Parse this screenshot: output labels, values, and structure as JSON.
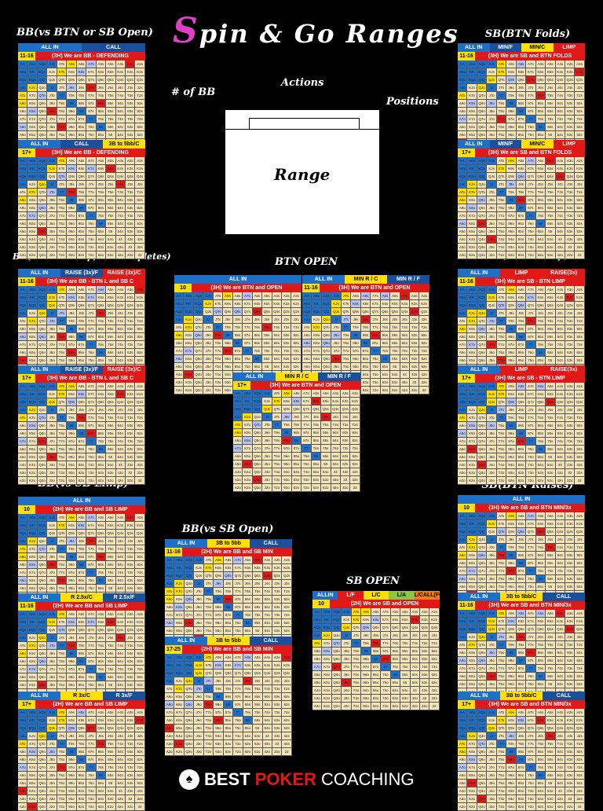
{
  "title": "Spin & Go Ranges",
  "legend_box": {
    "num_bb": "# of BB",
    "actions": "Actions",
    "positions": "Positions",
    "range": "Range"
  },
  "logo": {
    "best": "BEST",
    "poker": "POKER",
    "coaching": "COACHING"
  },
  "sections": [
    {
      "id": "bb-vs-btn-sb-open",
      "title": "BB(vs BTN or SB Open)"
    },
    {
      "id": "sb-btn-folds",
      "title": "SB(BTN Folds)"
    },
    {
      "id": "bb-vs-btn-limp",
      "title": "BB(vs BTN Limp, SB Completes)"
    },
    {
      "id": "btn-open",
      "title": "BTN OPEN"
    },
    {
      "id": "sb-btn-limp",
      "title": "SB(BTN Limp)"
    },
    {
      "id": "bb-vs-sb-limp",
      "title": "BB(vs SB Limp)"
    },
    {
      "id": "bb-vs-sb-open",
      "title": "BB(vs SB Open)"
    },
    {
      "id": "sb-open",
      "title": "SB OPEN"
    },
    {
      "id": "sb-btn-raises",
      "title": "SB(BTN Raises)"
    }
  ],
  "charts": [
    {
      "id": "c1",
      "legend": [
        "ALL IN",
        "CALL"
      ],
      "stack": "11-16",
      "situation": "(3H) We are BB - DEFENDING"
    },
    {
      "id": "c2",
      "legend": [
        "ALL IN",
        "CALL",
        "3B to 5bb/C"
      ],
      "stack": "17+",
      "situation": "(3H) We are BB - DEFENDING"
    },
    {
      "id": "c3",
      "legend": [
        "ALL IN",
        "MIN/F",
        "MIN/C",
        "LIMP"
      ],
      "stack": "11-16",
      "situation": "(3H) We are SB and BTN FOLDS"
    },
    {
      "id": "c4",
      "legend": [
        "ALL IN",
        "MIN/F",
        "MIN/C",
        "LIMP"
      ],
      "stack": "17+",
      "situation": "(3H) We are SB and BTN FOLDS"
    },
    {
      "id": "c5",
      "legend": [
        "ALL IN",
        "RAISE (3x)/F",
        "RAISE (3x)/C"
      ],
      "stack": "11-16",
      "situation": "(3H) We are BB - BTN L and SB C"
    },
    {
      "id": "c6",
      "legend": [
        "ALL IN",
        "RAISE (3x)/F",
        "RAISE (3x)/C"
      ],
      "stack": "17+",
      "situation": "(3H) We are BB - BTN L and SB C"
    },
    {
      "id": "c7",
      "legend": [
        "ALL IN"
      ],
      "stack": "10",
      "situation": "(3H) We are BTN and OPEN"
    },
    {
      "id": "c8",
      "legend": [
        "ALL IN",
        "MIN R / C",
        "MIN R / F"
      ],
      "stack": "11-16",
      "situation": "(3H) We are BTN and OPEN"
    },
    {
      "id": "c9",
      "legend": [
        "ALL IN",
        "MIN R / C",
        "MIN R / F"
      ],
      "stack": "17+",
      "situation": "(3H) We are BTN and OPEN"
    },
    {
      "id": "c10",
      "legend": [
        "ALL IN",
        "LIMP",
        "RAISE(3x)"
      ],
      "stack": "11-16",
      "situation": "(3H) We are SB - BTN LIMP"
    },
    {
      "id": "c11",
      "legend": [
        "ALL IN",
        "LIMP",
        "RAISE(3x)"
      ],
      "stack": "17+",
      "situation": "(3H) We are SB - BTN LIMP"
    },
    {
      "id": "c12",
      "legend": [
        "ALL IN"
      ],
      "stack": "10",
      "situation": "(2H) We are BB and SB LIMP"
    },
    {
      "id": "c13",
      "legend": [
        "ALL IN",
        "R 2.5x/C",
        "R 2.5x/F"
      ],
      "stack": "11-16",
      "situation": "(2H) We are BB and SB LIMP"
    },
    {
      "id": "c14",
      "legend": [
        "ALL IN",
        "R 3x/C",
        "R 3x/F"
      ],
      "stack": "17+",
      "situation": "(2H) We are BB and SB LIMP"
    },
    {
      "id": "c15",
      "legend": [
        "ALL IN",
        "3B to 5bb",
        "CALL"
      ],
      "stack": "11-16",
      "situation": "(2H) We are BB and SB MIN"
    },
    {
      "id": "c16",
      "legend": [
        "ALL IN",
        "3B to 5bb",
        "CALL"
      ],
      "stack": "17-25",
      "situation": "(2H) We are BB and SB MIN"
    },
    {
      "id": "c17",
      "legend": [
        "ALLIN",
        "L/F",
        "L/C",
        "L/A",
        "L/CALL(FOLD)/ALLIN"
      ],
      "stack": "10",
      "situation": "(2H) We are SB and OPEN"
    },
    {
      "id": "c18",
      "legend": [
        "ALL IN"
      ],
      "stack": "10",
      "situation": "(3H) We are SB and BTN MIN/3x"
    },
    {
      "id": "c19",
      "legend": [
        "ALL IN",
        "3B to 5bb/C",
        "CALL"
      ],
      "stack": "11-16",
      "situation": "(3H) We are SB and BTN MIN/3x"
    },
    {
      "id": "c20",
      "legend": [
        "ALL IN",
        "3B to 5bb/C",
        "CALL"
      ],
      "stack": "17+",
      "situation": "(3H) We are SB and BTN MIN/3x"
    }
  ],
  "ranks": [
    "A",
    "K",
    "Q",
    "J",
    "T",
    "9",
    "8",
    "7",
    "6",
    "5",
    "4",
    "3",
    "2"
  ],
  "colors": {
    "allin": "#1e6fc8",
    "call": "#1a4f9c",
    "red": "#e01818",
    "yellow": "#ffe000",
    "orange": "#f07c1a",
    "green": "#8cc640",
    "pink": "#e040c8"
  }
}
